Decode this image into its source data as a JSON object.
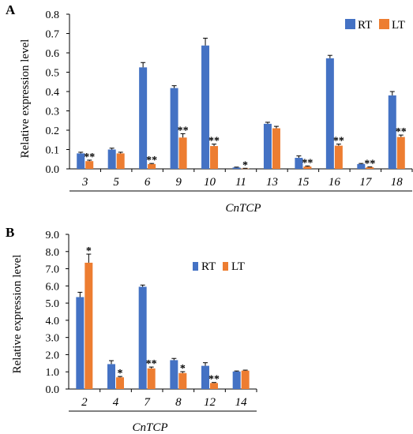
{
  "colors": {
    "RT": "#4472C4",
    "LT": "#ED7D31"
  },
  "chart_data": [
    {
      "panel": "A",
      "type": "bar",
      "xlabel": "CnTCP",
      "ylabel": "Relative expression level",
      "ylim": [
        0,
        0.8
      ],
      "yticks": [
        "0.0",
        "0.1",
        "0.2",
        "0.3",
        "0.4",
        "0.5",
        "0.6",
        "0.7",
        "0.8"
      ],
      "categories": [
        "3",
        "5",
        "6",
        "9",
        "10",
        "11",
        "13",
        "15",
        "16",
        "17",
        "18"
      ],
      "legend": [
        "RT",
        "LT"
      ],
      "legend_position": "top-right",
      "series": [
        {
          "name": "RT",
          "values": [
            0.08,
            0.1,
            0.525,
            0.418,
            0.638,
            0.007,
            0.233,
            0.057,
            0.572,
            0.025,
            0.38
          ],
          "errors": [
            0.006,
            0.007,
            0.025,
            0.012,
            0.038,
            0.002,
            0.008,
            0.01,
            0.015,
            0.003,
            0.02
          ]
        },
        {
          "name": "LT",
          "values": [
            0.04,
            0.08,
            0.025,
            0.162,
            0.118,
            0.002,
            0.21,
            0.012,
            0.12,
            0.008,
            0.165
          ],
          "errors": [
            0.005,
            0.006,
            0.003,
            0.02,
            0.01,
            0.001,
            0.01,
            0.003,
            0.008,
            0.002,
            0.01
          ]
        }
      ],
      "significance": [
        "**",
        "",
        "**",
        "**",
        "**",
        "*",
        "",
        "**",
        "**",
        "**",
        "**"
      ]
    },
    {
      "panel": "B",
      "type": "bar",
      "xlabel": "CnTCP",
      "ylabel": "Relative expression level",
      "ylim": [
        0,
        9
      ],
      "yticks": [
        "0.0",
        "1.0",
        "2.0",
        "3.0",
        "4.0",
        "5.0",
        "6.0",
        "7.0",
        "8.0",
        "9.0"
      ],
      "categories": [
        "2",
        "4",
        "7",
        "8",
        "12",
        "14"
      ],
      "legend": [
        "RT",
        "LT"
      ],
      "legend_position": "top-center",
      "series": [
        {
          "name": "RT",
          "values": [
            5.35,
            1.45,
            5.95,
            1.68,
            1.35,
            1.02
          ],
          "errors": [
            0.28,
            0.2,
            0.1,
            0.1,
            0.18,
            0.03
          ]
        },
        {
          "name": "LT",
          "values": [
            7.35,
            0.68,
            1.2,
            0.93,
            0.35,
            1.07
          ],
          "errors": [
            0.5,
            0.05,
            0.08,
            0.08,
            0.03,
            0.03
          ]
        }
      ],
      "significance": [
        "*",
        "*",
        "**",
        "*",
        "**",
        ""
      ]
    }
  ]
}
